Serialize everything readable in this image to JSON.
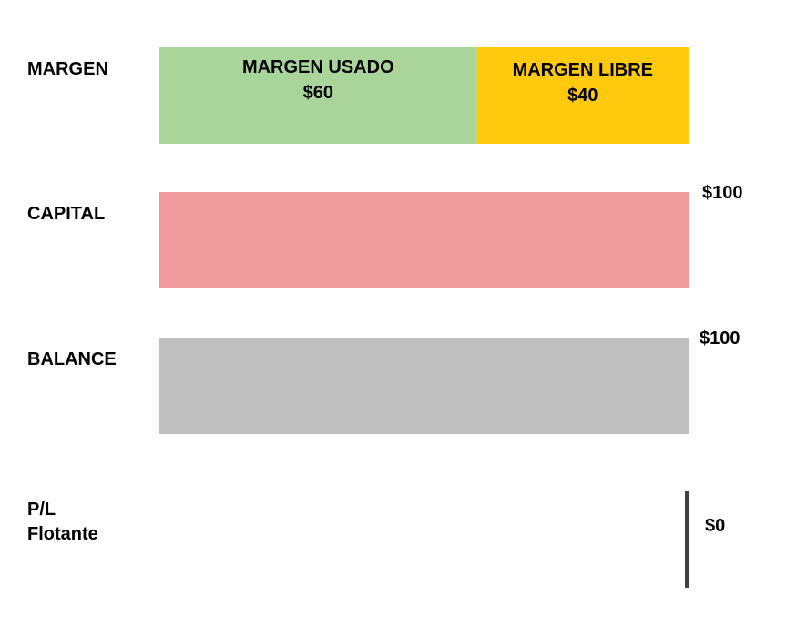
{
  "chart_data": {
    "type": "bar",
    "orientation": "horizontal",
    "xlim": [
      0,
      100
    ],
    "rows": [
      {
        "category": "MARGEN",
        "segments": [
          {
            "name": "MARGEN USADO",
            "value": 60,
            "value_label": "$60",
            "color": "#a9d59a"
          },
          {
            "name": "MARGEN LIBRE",
            "value": 40,
            "value_label": "$40",
            "color": "#ffc90e"
          }
        ]
      },
      {
        "category": "CAPITAL",
        "value": 100,
        "value_label": "$100",
        "color": "#f09c9e"
      },
      {
        "category": "BALANCE",
        "value": 100,
        "value_label": "$100",
        "color": "#bfbfbf"
      },
      {
        "category": "P/L Flotante",
        "value": 0,
        "value_label": "$0",
        "color": "#404040"
      }
    ]
  }
}
